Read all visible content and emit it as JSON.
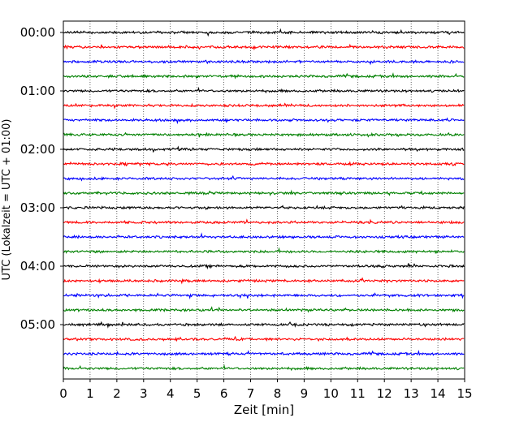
{
  "chart_data": {
    "type": "line",
    "title": "",
    "xlabel": "Zeit  [min]",
    "ylabel": "UTC (Lokalzeit = UTC + 01:00)",
    "xlim": [
      0,
      15
    ],
    "x_ticks": [
      "0",
      "1",
      "2",
      "3",
      "4",
      "5",
      "6",
      "7",
      "8",
      "9",
      "10",
      "11",
      "12",
      "13",
      "14",
      "15"
    ],
    "y_tick_labels": [
      "00:00",
      "01:00",
      "02:00",
      "03:00",
      "04:00",
      "05:00"
    ],
    "trace_interval_min": 15,
    "traces_per_hour": 4,
    "trace_count": 24,
    "trace_colors": [
      "#000000",
      "#ff0000",
      "#0000ff",
      "#008000"
    ],
    "grid": "vertical dotted",
    "legend": "none"
  }
}
